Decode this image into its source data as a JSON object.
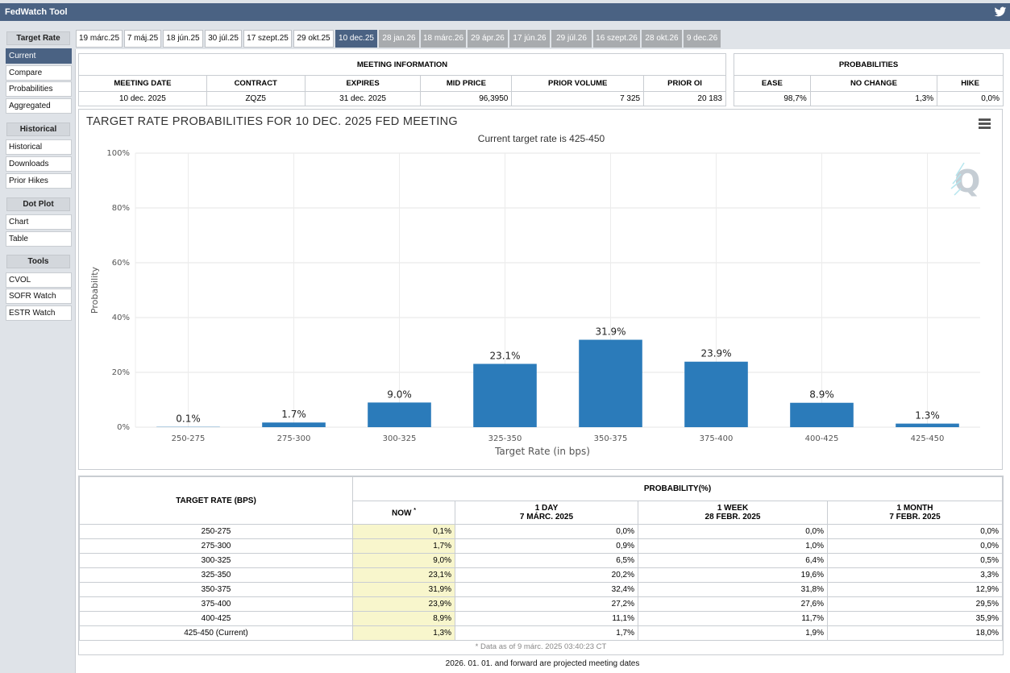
{
  "app": {
    "title": "FedWatch Tool"
  },
  "sidebar": {
    "groups": [
      {
        "title": "Target Rate",
        "items": [
          "Current",
          "Compare",
          "Probabilities",
          "Aggregated"
        ]
      },
      {
        "title": "Historical",
        "items": [
          "Historical",
          "Downloads",
          "Prior Hikes"
        ]
      },
      {
        "title": "Dot Plot",
        "items": [
          "Chart",
          "Table"
        ]
      },
      {
        "title": "Tools",
        "items": [
          "CVOL",
          "SOFR Watch",
          "ESTR Watch"
        ]
      }
    ],
    "active_item": "Current"
  },
  "tabs": [
    {
      "label": "19 márc.25",
      "state": "normal"
    },
    {
      "label": "7 máj.25",
      "state": "normal"
    },
    {
      "label": "18 jún.25",
      "state": "normal"
    },
    {
      "label": "30 júl.25",
      "state": "normal"
    },
    {
      "label": "17 szept.25",
      "state": "normal"
    },
    {
      "label": "29 okt.25",
      "state": "normal"
    },
    {
      "label": "10 dec.25",
      "state": "active"
    },
    {
      "label": "28 jan.26",
      "state": "future"
    },
    {
      "label": "18 márc.26",
      "state": "future"
    },
    {
      "label": "29 ápr.26",
      "state": "future"
    },
    {
      "label": "17 jún.26",
      "state": "future"
    },
    {
      "label": "29 júl.26",
      "state": "future"
    },
    {
      "label": "16 szept.26",
      "state": "future"
    },
    {
      "label": "28 okt.26",
      "state": "future"
    },
    {
      "label": "9 dec.26",
      "state": "future"
    }
  ],
  "meeting_info": {
    "section_title": "MEETING INFORMATION",
    "headers": [
      "MEETING DATE",
      "CONTRACT",
      "EXPIRES",
      "MID PRICE",
      "PRIOR VOLUME",
      "PRIOR OI"
    ],
    "values": [
      "10 dec. 2025",
      "ZQZ5",
      "31 dec. 2025",
      "96,3950",
      "7 325",
      "20 183"
    ]
  },
  "probabilities": {
    "section_title": "PROBABILITIES",
    "headers": [
      "EASE",
      "NO CHANGE",
      "HIKE"
    ],
    "values": [
      "98,7%",
      "1,3%",
      "0,0%"
    ]
  },
  "chart": {
    "title": "TARGET RATE PROBABILITIES FOR 10 DEC. 2025 FED MEETING",
    "subtitle": "Current target rate is 425-450",
    "bar_color": "#2b7bba"
  },
  "chart_data": {
    "type": "bar",
    "categories": [
      "250-275",
      "275-300",
      "300-325",
      "325-350",
      "350-375",
      "375-400",
      "400-425",
      "425-450"
    ],
    "values": [
      0.1,
      1.7,
      9.0,
      23.1,
      31.9,
      23.9,
      8.9,
      1.3
    ],
    "data_labels": [
      "0.1%",
      "1.7%",
      "9.0%",
      "23.1%",
      "31.9%",
      "23.9%",
      "8.9%",
      "1.3%"
    ],
    "xlabel": "Target Rate (in bps)",
    "ylabel": "Probability",
    "ylim": [
      0,
      100
    ],
    "yticks": [
      "0%",
      "20%",
      "40%",
      "60%",
      "80%",
      "100%"
    ],
    "ytick_values": [
      0,
      20,
      40,
      60,
      80,
      100
    ],
    "grid": true
  },
  "lower_table": {
    "col_target": "TARGET RATE (BPS)",
    "col_prob": "PROBABILITY(%)",
    "sub_now": "NOW",
    "sub_now_mark": "*",
    "sub_1day": "1 DAY",
    "sub_1day_date": "7 MÁRC. 2025",
    "sub_1week": "1 WEEK",
    "sub_1week_date": "28 FEBR. 2025",
    "sub_1month": "1 MONTH",
    "sub_1month_date": "7 FEBR. 2025",
    "rows": [
      [
        "250-275",
        "0,1%",
        "0,0%",
        "0,0%",
        "0,0%"
      ],
      [
        "275-300",
        "1,7%",
        "0,9%",
        "1,0%",
        "0,0%"
      ],
      [
        "300-325",
        "9,0%",
        "6,5%",
        "6,4%",
        "0,5%"
      ],
      [
        "325-350",
        "23,1%",
        "20,2%",
        "19,6%",
        "3,3%"
      ],
      [
        "350-375",
        "31,9%",
        "32,4%",
        "31,8%",
        "12,9%"
      ],
      [
        "375-400",
        "23,9%",
        "27,2%",
        "27,6%",
        "29,5%"
      ],
      [
        "400-425",
        "8,9%",
        "11,1%",
        "11,7%",
        "35,9%"
      ],
      [
        "425-450 (Current)",
        "1,3%",
        "1,7%",
        "1,9%",
        "18,0%"
      ]
    ],
    "data_note": "* Data as of 9 márc. 2025 03:40:23 CT"
  },
  "footer_note": "2026. 01. 01. and forward are projected meeting dates"
}
